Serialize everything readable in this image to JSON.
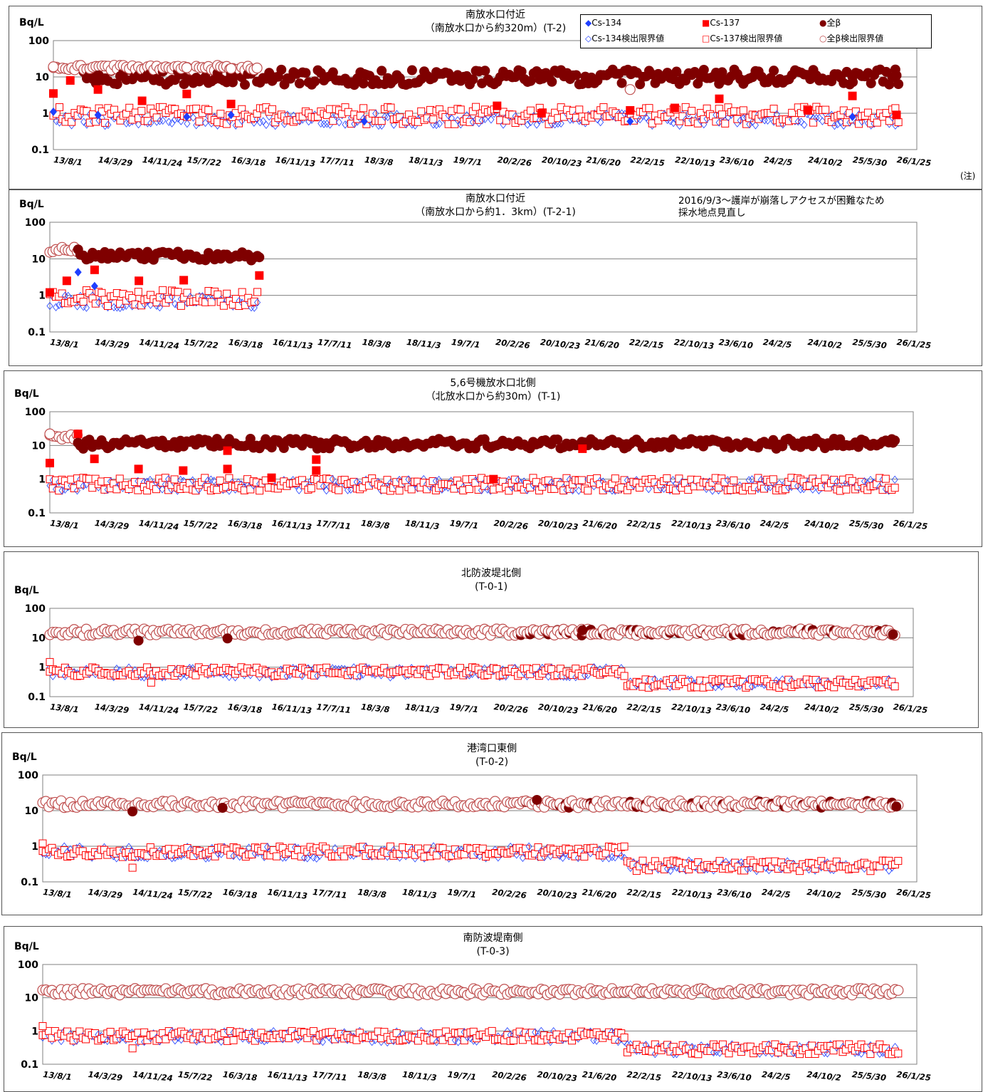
{
  "colors": {
    "cs134": "#1f3fff",
    "cs137": "#ff0000",
    "beta": "#7f0000",
    "beta_limit": "#c05050"
  },
  "legend": {
    "cs134": "Cs-134",
    "cs137": "Cs-137",
    "beta": "全β",
    "cs134_limit": "Cs-134検出限界値",
    "cs137_limit": "Cs-137検出限界値",
    "beta_limit": "全β検出限界値"
  },
  "footnote": "(注)",
  "chart_data": [
    {
      "type": "scatter",
      "title_line1": "南放水口付近",
      "title_line2": "（南放水口から約320m）(T-2)",
      "unit": "Bq/L",
      "yscale": "log",
      "ylim": [
        0.1,
        100
      ],
      "y_ticks": [
        "100",
        "10",
        "1",
        "0.1"
      ],
      "grid": "horizontal",
      "x_ticks": [
        "13/8/1",
        "14/3/29",
        "14/11/24",
        "15/7/22",
        "16/3/18",
        "16/11/13",
        "17/7/11",
        "18/3/8",
        "18/11/3",
        "19/7/1",
        "20/2/26",
        "20/10/23",
        "21/6/20",
        "22/2/15",
        "22/10/13",
        "23/6/10",
        "24/2/5",
        "24/10/2",
        "25/5/30",
        "26/1/25"
      ],
      "series": [
        {
          "name": "Cs-134",
          "points": [
            [
              "13/8/1",
              1.1
            ],
            [
              "14/3/29",
              0.9
            ],
            [
              "15/7/22",
              0.8
            ],
            [
              "16/3/18",
              0.9
            ],
            [
              "18/3/8",
              0.6
            ],
            [
              "22/2/15",
              0.6
            ],
            [
              "25/5/30",
              0.8
            ]
          ]
        },
        {
          "name": "Cs-137",
          "points": [
            [
              "13/8/1",
              3.5
            ],
            [
              "13/11/1",
              8.0
            ],
            [
              "14/3/29",
              4.5
            ],
            [
              "14/11/24",
              2.2
            ],
            [
              "15/7/22",
              3.4
            ],
            [
              "16/3/18",
              1.8
            ],
            [
              "20/2/26",
              1.6
            ],
            [
              "20/10/23",
              1.0
            ],
            [
              "22/2/15",
              1.2
            ],
            [
              "22/10/13",
              1.4
            ],
            [
              "23/6/10",
              2.5
            ],
            [
              "24/10/2",
              1.2
            ],
            [
              "25/5/30",
              3.0
            ],
            [
              "26/1/25",
              0.9
            ]
          ]
        },
        {
          "name": "全β",
          "points": [
            [
              "14/3/29",
              11
            ],
            [
              "16/3/18",
              12
            ],
            [
              "18/3/8",
              12
            ],
            [
              "20/10/23",
              12
            ],
            [
              "22/2/15",
              13
            ],
            [
              "23/6/10",
              11
            ],
            [
              "25/5/30",
              10
            ],
            [
              "26/1/25",
              11
            ]
          ]
        },
        {
          "name": "全β検出限界値",
          "points": [
            [
              "13/8/1",
              19
            ],
            [
              "15/7/22",
              18
            ],
            [
              "16/3/18",
              17
            ],
            [
              "22/2/15",
              4.5
            ]
          ]
        }
      ],
      "range_estimate": {
        "Cs-134": [
          0.4,
          1.2
        ],
        "Cs-137": [
          0.5,
          1.5
        ],
        "全β": [
          6,
          16
        ],
        "全β検出限界値": [
          15,
          21
        ]
      }
    },
    {
      "type": "scatter",
      "title_line1": "南放水口付近",
      "title_line2": "（南放水口から約1．3km）(T-2-1)",
      "note": "2016/9/3～護岸が崩落しアクセスが困難なため\n採水地点見直し",
      "unit": "Bq/L",
      "yscale": "log",
      "ylim": [
        0.1,
        100
      ],
      "y_ticks": [
        "100",
        "10",
        "1",
        "0.1"
      ],
      "grid": "horizontal",
      "x_ticks": [
        "13/8/1",
        "14/3/29",
        "14/11/24",
        "15/7/22",
        "16/3/18",
        "16/11/13",
        "17/7/11",
        "18/3/8",
        "18/11/3",
        "19/7/1",
        "20/2/26",
        "20/10/23",
        "21/6/20",
        "22/2/15",
        "22/10/13",
        "23/6/10",
        "24/2/5",
        "24/10/2",
        "25/5/30",
        "26/1/25"
      ],
      "series": [
        {
          "name": "Cs-134",
          "points": [
            [
              "14/1/1",
              4.3
            ],
            [
              "14/3/29",
              1.8
            ]
          ]
        },
        {
          "name": "Cs-137",
          "points": [
            [
              "13/8/1",
              1.2
            ],
            [
              "13/11/1",
              2.5
            ],
            [
              "14/3/29",
              5.0
            ],
            [
              "14/11/24",
              2.5
            ],
            [
              "15/7/22",
              2.6
            ],
            [
              "16/9/3",
              3.5
            ]
          ]
        },
        {
          "name": "全β",
          "points": [
            [
              "14/1/1",
              18
            ],
            [
              "15/7/22",
              12
            ],
            [
              "16/9/3",
              11
            ]
          ]
        }
      ],
      "range_estimate": {
        "Cs-137": [
          0.5,
          1.4
        ],
        "全β": [
          9,
          16
        ],
        "全β検出限界値": [
          15,
          20
        ]
      }
    },
    {
      "type": "scatter",
      "title_line1": "5,6号機放水口北側",
      "title_line2": "（北放水口から約30m）(T-1)",
      "unit": "Bq/L",
      "yscale": "log",
      "ylim": [
        0.1,
        100
      ],
      "y_ticks": [
        "100",
        "10",
        "1",
        "0.1"
      ],
      "grid": "horizontal",
      "x_ticks": [
        "13/8/1",
        "14/3/29",
        "14/11/24",
        "15/7/22",
        "16/3/18",
        "16/11/13",
        "17/7/11",
        "18/3/8",
        "18/11/3",
        "19/7/1",
        "20/2/26",
        "20/10/23",
        "21/6/20",
        "22/2/15",
        "22/10/13",
        "23/6/10",
        "24/2/5",
        "24/10/2",
        "25/5/30",
        "26/1/25"
      ],
      "series": [
        {
          "name": "Cs-137",
          "points": [
            [
              "13/8/1",
              3.0
            ],
            [
              "14/1/1",
              22
            ],
            [
              "14/3/29",
              4.0
            ],
            [
              "14/11/24",
              2.0
            ],
            [
              "15/7/22",
              1.8
            ],
            [
              "16/3/18",
              7.0
            ],
            [
              "16/3/18",
              2.0
            ],
            [
              "16/11/13",
              1.1
            ],
            [
              "17/7/11",
              3.8
            ],
            [
              "17/7/11",
              1.8
            ],
            [
              "20/2/26",
              1.0
            ],
            [
              "21/6/20",
              8.0
            ]
          ]
        },
        {
          "name": "全β",
          "points": [
            [
              "14/1/1",
              12
            ],
            [
              "18/11/3",
              13
            ],
            [
              "22/2/15",
              11
            ],
            [
              "26/1/25",
              12
            ]
          ]
        },
        {
          "name": "全β検出限界値",
          "points": [
            [
              "13/8/1",
              22
            ]
          ]
        }
      ],
      "range_estimate": {
        "Cs-137": [
          0.45,
          1.1
        ],
        "全β": [
          8,
          16
        ]
      }
    },
    {
      "type": "scatter",
      "title_line1": "北防波堤北側",
      "title_line2": "(T-0-1)",
      "unit": "Bq/L",
      "yscale": "log",
      "ylim": [
        0.1,
        100
      ],
      "y_ticks": [
        "100",
        "10",
        "1",
        "0.1"
      ],
      "grid": "horizontal",
      "x_ticks": [
        "13/8/1",
        "14/3/29",
        "14/11/24",
        "15/7/22",
        "16/3/18",
        "16/11/13",
        "17/7/11",
        "18/3/8",
        "18/11/3",
        "19/7/1",
        "20/2/26",
        "20/10/23",
        "21/6/20",
        "22/2/15",
        "22/10/13",
        "23/6/10",
        "24/2/5",
        "24/10/2",
        "25/5/30",
        "26/1/25"
      ],
      "series": [
        {
          "name": "全β",
          "points": [
            [
              "14/11/24",
              8
            ],
            [
              "16/3/18",
              9.5
            ],
            [
              "21/6/20",
              18
            ],
            [
              "26/1/25",
              13
            ]
          ]
        },
        {
          "name": "Cs-137検出限界値",
          "points": [
            [
              "13/8/1",
              1.5
            ],
            [
              "15/2/1",
              0.3
            ]
          ]
        }
      ],
      "range_estimate": {
        "Cs-137検出限界値_before_2022": [
          0.5,
          1.0
        ],
        "Cs-137検出限界値_after_2022": [
          0.2,
          0.4
        ],
        "全β検出限界値": [
          12,
          20
        ]
      }
    },
    {
      "type": "scatter",
      "title_line1": "港湾口東側",
      "title_line2": "(T-0-2)",
      "unit": "Bq/L",
      "yscale": "log",
      "ylim": [
        0.1,
        100
      ],
      "y_ticks": [
        "100",
        "10",
        "1",
        "0.1"
      ],
      "grid": "horizontal",
      "x_ticks": [
        "13/8/1",
        "14/3/29",
        "14/11/24",
        "15/7/22",
        "16/3/18",
        "16/11/13",
        "17/7/11",
        "18/3/8",
        "18/11/3",
        "19/7/1",
        "20/2/26",
        "20/10/23",
        "21/6/20",
        "22/2/15",
        "22/10/13",
        "23/6/10",
        "24/2/5",
        "24/10/2",
        "25/5/30",
        "26/1/25"
      ],
      "series": [
        {
          "name": "全β",
          "points": [
            [
              "14/11/24",
              9.5
            ],
            [
              "16/3/18",
              12
            ],
            [
              "20/10/23",
              20
            ],
            [
              "26/1/25",
              13
            ]
          ]
        },
        {
          "name": "Cs-137検出限界値",
          "points": [
            [
              "13/8/1",
              1.2
            ],
            [
              "14/11/24",
              0.25
            ]
          ]
        }
      ],
      "range_estimate": {
        "Cs-137検出限界値_before_2022": [
          0.5,
          1.0
        ],
        "Cs-137検出限界値_after_2022": [
          0.2,
          0.4
        ],
        "全β検出限界値": [
          12,
          19
        ]
      }
    },
    {
      "type": "scatter",
      "title_line1": "南防波堤南側",
      "title_line2": "(T-0-3)",
      "unit": "Bq/L",
      "yscale": "log",
      "ylim": [
        0.1,
        100
      ],
      "y_ticks": [
        "100",
        "10",
        "1",
        "0.1"
      ],
      "grid": "horizontal",
      "x_ticks": [
        "13/8/1",
        "14/3/29",
        "14/11/24",
        "15/7/22",
        "16/3/18",
        "16/11/13",
        "17/7/11",
        "18/3/8",
        "18/11/3",
        "19/7/1",
        "20/2/26",
        "20/10/23",
        "21/6/20",
        "22/2/15",
        "22/10/13",
        "23/6/10",
        "24/2/5",
        "24/10/2",
        "25/5/30",
        "26/1/25"
      ],
      "series": [
        {
          "name": "Cs-137検出限界値",
          "points": [
            [
              "13/8/1",
              1.4
            ],
            [
              "14/11/24",
              0.3
            ]
          ]
        }
      ],
      "range_estimate": {
        "Cs-137検出限界値_before_2022": [
          0.5,
          1.0
        ],
        "Cs-137検出限界値_after_2022": [
          0.2,
          0.4
        ],
        "全β検出限界値": [
          12,
          19
        ]
      }
    }
  ]
}
